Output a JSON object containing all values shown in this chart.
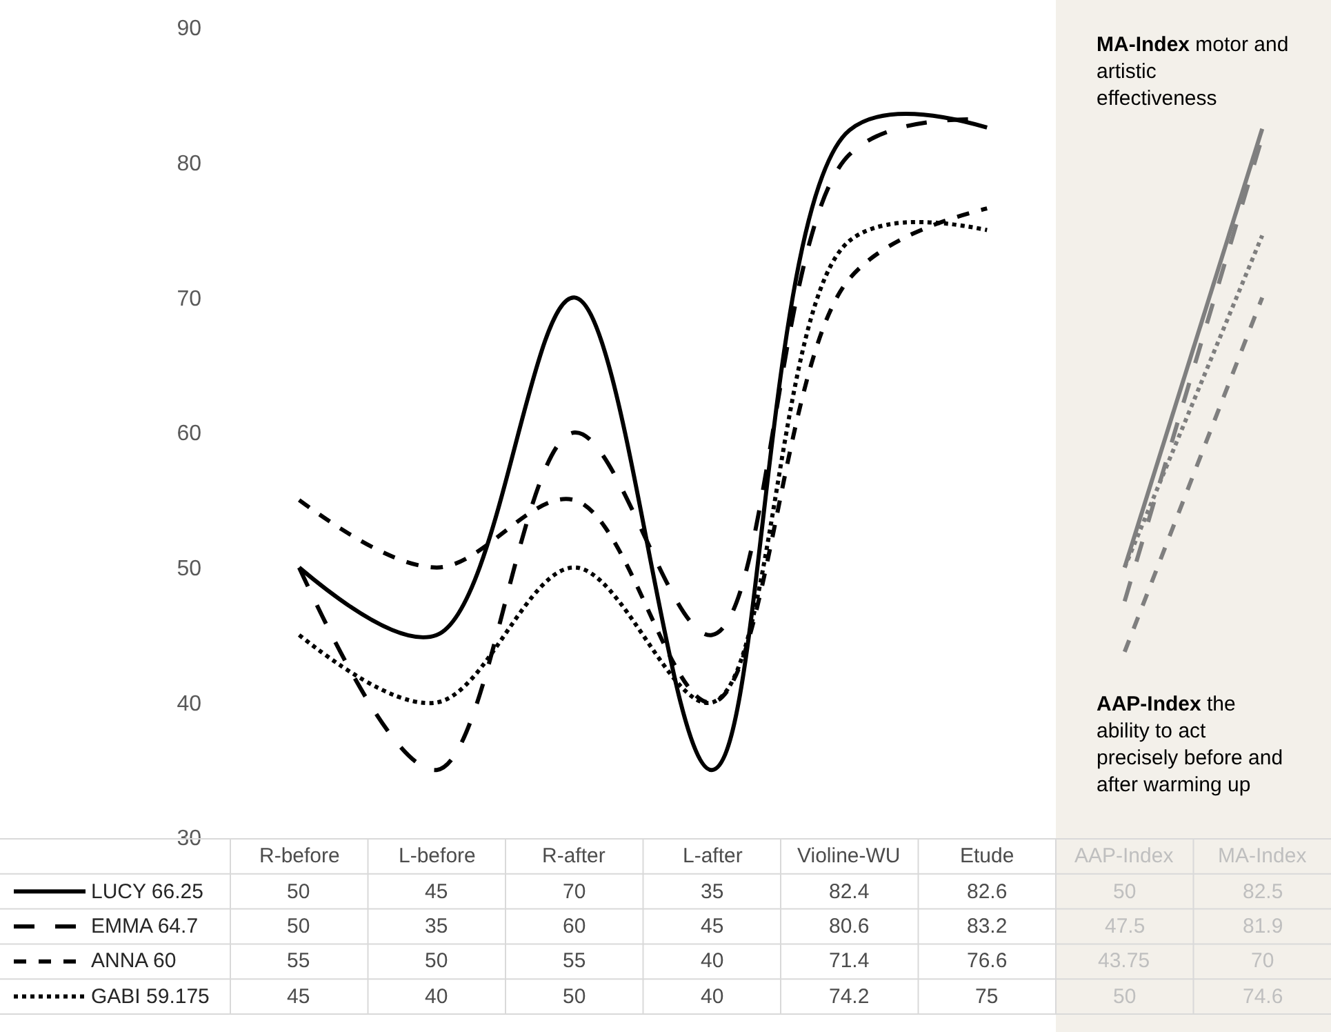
{
  "chart_data": {
    "type": "line",
    "categories": [
      "R-before",
      "L-before",
      "R-after",
      "L-after",
      "Violine-WU",
      "Etude",
      "AAP-Index",
      "MA-Index"
    ],
    "series": [
      {
        "name": "LUCY 66.25",
        "color": "#000000",
        "line_style": "solid",
        "values": [
          50,
          45,
          70,
          35,
          82.4,
          82.6,
          null,
          null
        ],
        "value_labels": [
          "50",
          "45",
          "70",
          "35",
          "82.4",
          "82.6",
          "50",
          "82.5"
        ]
      },
      {
        "name": "EMMA 64.7",
        "color": "#000000",
        "line_style": "long dashed",
        "values": [
          50,
          35,
          60,
          45,
          80.6,
          83.2,
          null,
          null
        ],
        "value_labels": [
          "50",
          "35",
          "60",
          "45",
          "80.6",
          "83.2",
          "47.5",
          "81.9"
        ]
      },
      {
        "name": "ANNA 60",
        "color": "#000000",
        "line_style": "dashed",
        "values": [
          55,
          50,
          55,
          40,
          71.4,
          76.6,
          null,
          null
        ],
        "value_labels": [
          "55",
          "50",
          "55",
          "40",
          "71.4",
          "76.6",
          "43.75",
          "70"
        ]
      },
      {
        "name": "GABI 59.175",
        "color": "#000000",
        "line_style": "dotted",
        "values": [
          45,
          40,
          50,
          40,
          74.2,
          75,
          null,
          null
        ],
        "value_labels": [
          "45",
          "40",
          "50",
          "40",
          "74.2",
          "75",
          "50",
          "74.6"
        ]
      },
      {
        "color": "#7f7f7f",
        "line_style": "solid",
        "values": [
          null,
          null,
          null,
          null,
          null,
          null,
          50,
          82.5
        ]
      },
      {
        "color": "#7f7f7f",
        "line_style": "long dashed",
        "values": [
          null,
          null,
          null,
          null,
          null,
          null,
          47.5,
          81.9
        ]
      },
      {
        "color": "#7f7f7f",
        "line_style": "dashed",
        "values": [
          null,
          null,
          null,
          null,
          null,
          null,
          43.75,
          70
        ]
      },
      {
        "color": "#7f7f7f",
        "line_style": "dotted",
        "values": [
          null,
          null,
          null,
          null,
          null,
          null,
          50,
          74.6
        ]
      }
    ],
    "ylim": [
      30,
      90
    ],
    "yticks": [
      30,
      40,
      50,
      60,
      70,
      80,
      90
    ],
    "legend": "bottom left",
    "bands": [
      {
        "axis": "x",
        "from": "AAP-Index",
        "to": "MA-Index",
        "color": "#f3f0ea"
      }
    ],
    "annotations": [
      "MA-Index motor and artistic effectiveness",
      "AAP-Index the ability to act precisely before and after warming up"
    ]
  }
}
